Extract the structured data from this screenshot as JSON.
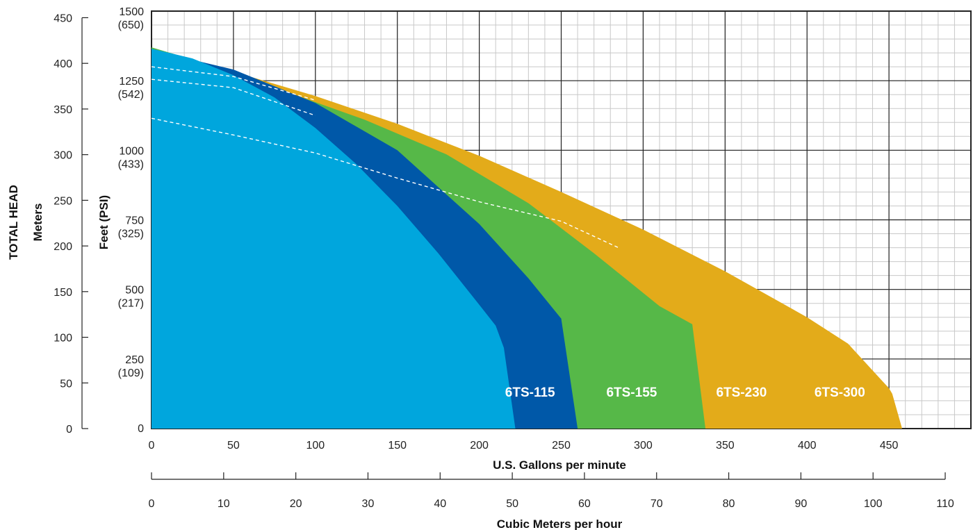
{
  "chart_data": {
    "type": "area",
    "title": "",
    "xlabel": "U.S. Gallons per minute",
    "x2label": "Cubic Meters per hour",
    "ylabel_left_line1": "TOTAL HEAD",
    "ylabel_left_line2": "Meters",
    "ylabel_right": "Feet (PSI)",
    "xlim": [
      0,
      500
    ],
    "ylim_feet": [
      0,
      1500
    ],
    "grid": true,
    "x_ticks": [
      "0",
      "50",
      "100",
      "150",
      "200",
      "250",
      "300",
      "350",
      "400",
      "450"
    ],
    "x_tick_values": [
      0,
      50,
      100,
      150,
      200,
      250,
      300,
      350,
      400,
      450
    ],
    "x2_ticks": [
      "0",
      "10",
      "20",
      "30",
      "40",
      "50",
      "60",
      "70",
      "80",
      "90",
      "100",
      "110"
    ],
    "x2_tick_values": [
      0,
      10,
      20,
      30,
      40,
      50,
      60,
      70,
      80,
      90,
      100,
      110
    ],
    "meters_ticks": [
      "0",
      "50",
      "100",
      "150",
      "200",
      "250",
      "300",
      "350",
      "400",
      "450"
    ],
    "meters_tick_values": [
      0,
      50,
      100,
      150,
      200,
      250,
      300,
      350,
      400,
      450
    ],
    "feet_ticks": [
      {
        "feet": "1500",
        "psi": "(650)",
        "value": 1500
      },
      {
        "feet": "1250",
        "psi": "(542)",
        "value": 1250
      },
      {
        "feet": "1000",
        "psi": "(433)",
        "value": 1000
      },
      {
        "feet": "750",
        "psi": "(325)",
        "value": 750
      },
      {
        "feet": "500",
        "psi": "(217)",
        "value": 500
      },
      {
        "feet": "250",
        "psi": "(109)",
        "value": 250
      },
      {
        "feet": "0",
        "psi": "",
        "value": 0
      }
    ],
    "series": [
      {
        "name": "6TS-300",
        "color": "#e3ab1a",
        "label_x": 420,
        "points": [
          [
            0,
            1365
          ],
          [
            60,
            1265
          ],
          [
            100,
            1195
          ],
          [
            150,
            1095
          ],
          [
            200,
            980
          ],
          [
            250,
            850
          ],
          [
            300,
            715
          ],
          [
            350,
            565
          ],
          [
            400,
            400
          ],
          [
            425,
            305
          ],
          [
            450,
            145
          ],
          [
            452,
            125
          ],
          [
            458,
            0
          ]
        ]
      },
      {
        "name": "6TS-230",
        "color": "#56b848",
        "label_x": 360,
        "points": [
          [
            0,
            1370
          ],
          [
            40,
            1300
          ],
          [
            80,
            1215
          ],
          [
            130,
            1110
          ],
          [
            180,
            985
          ],
          [
            230,
            810
          ],
          [
            270,
            630
          ],
          [
            310,
            440
          ],
          [
            330,
            375
          ],
          [
            338,
            0
          ]
        ]
      },
      {
        "name": "6TS-155",
        "color": "#0058a8",
        "label_x": 293,
        "points": [
          [
            0,
            1360
          ],
          [
            50,
            1290
          ],
          [
            100,
            1170
          ],
          [
            150,
            1000
          ],
          [
            200,
            735
          ],
          [
            230,
            540
          ],
          [
            250,
            395
          ],
          [
            260,
            0
          ]
        ]
      },
      {
        "name": "6TS-115",
        "color": "#00a6dd",
        "label_x": 231,
        "points": [
          [
            0,
            1365
          ],
          [
            25,
            1330
          ],
          [
            50,
            1270
          ],
          [
            75,
            1190
          ],
          [
            100,
            1080
          ],
          [
            125,
            950
          ],
          [
            150,
            800
          ],
          [
            175,
            630
          ],
          [
            200,
            445
          ],
          [
            210,
            370
          ],
          [
            215,
            290
          ],
          [
            222,
            0
          ]
        ]
      }
    ],
    "dashed_curves": [
      [
        [
          0,
          1300
        ],
        [
          50,
          1265
        ],
        [
          100,
          1180
        ]
      ],
      [
        [
          0,
          1255
        ],
        [
          50,
          1225
        ],
        [
          100,
          1125
        ]
      ],
      [
        [
          0,
          1115
        ],
        [
          50,
          1055
        ],
        [
          100,
          990
        ],
        [
          150,
          900
        ],
        [
          200,
          815
        ],
        [
          250,
          745
        ],
        [
          285,
          650
        ]
      ]
    ]
  }
}
